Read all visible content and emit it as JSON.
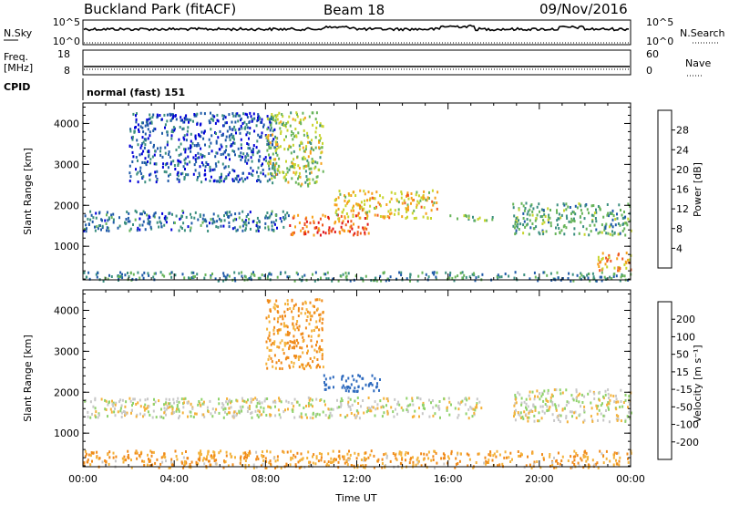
{
  "header": {
    "station": "Buckland Park (fitACF)",
    "beam": "Beam 18",
    "date": "09/Nov/2016"
  },
  "top_panels": {
    "nsky_label": "N.Sky",
    "nsearch_label": "N.Search",
    "nsky_ticks": [
      "10^5",
      "10^0"
    ],
    "freq_label_1": "Freq.",
    "freq_label_2": "[MHz]",
    "freq_ticks": [
      "18",
      "8"
    ],
    "nave_label": "Nave",
    "nave_ticks": [
      "60",
      "0"
    ],
    "cpid_label": "CPID",
    "cpid_text": "normal (fast) 151"
  },
  "chart_data": [
    {
      "type": "heatmap",
      "quantity": "Power",
      "ylabel": "Slant Range [km]",
      "ylim": [
        180,
        4500
      ],
      "yticks": [
        1000,
        2000,
        3000,
        4000
      ],
      "xlim": [
        0,
        24
      ],
      "colorbar_label": "Power [dB]",
      "colorbar_ticks": [
        "4",
        "8",
        "12",
        "16",
        "20",
        "24",
        "28"
      ],
      "colorbar_colors": [
        "#0000d8",
        "#1f5aa8",
        "#3b8f7f",
        "#67b45a",
        "#c8d42c",
        "#f7a11a",
        "#f05a1e",
        "#e0161a"
      ],
      "echo_regions": [
        {
          "t0": 0.0,
          "t1": 9.0,
          "r0": 1400,
          "r1": 1900,
          "level": 8
        },
        {
          "t0": 2.0,
          "t1": 8.5,
          "r0": 2600,
          "r1": 4300,
          "level": 6
        },
        {
          "t0": 8.0,
          "t1": 10.5,
          "r0": 2500,
          "r1": 4300,
          "level": 16
        },
        {
          "t0": 9.0,
          "t1": 12.5,
          "r0": 1300,
          "r1": 1800,
          "level": 26
        },
        {
          "t0": 11.0,
          "t1": 15.5,
          "r0": 1700,
          "r1": 2400,
          "level": 20
        },
        {
          "t0": 16.0,
          "t1": 18.0,
          "r0": 1650,
          "r1": 1800,
          "level": 14
        },
        {
          "t0": 18.8,
          "t1": 24.0,
          "r0": 1300,
          "r1": 2100,
          "level": 12
        },
        {
          "t0": 22.5,
          "t1": 24.0,
          "r0": 400,
          "r1": 900,
          "level": 22
        },
        {
          "t0": 0.0,
          "t1": 24.0,
          "r0": 180,
          "r1": 400,
          "level": 10
        }
      ]
    },
    {
      "type": "heatmap",
      "quantity": "Velocity",
      "ylabel": "Slant Range [km]",
      "xlabel": "Time UT",
      "ylim": [
        180,
        4500
      ],
      "yticks": [
        1000,
        2000,
        3000,
        4000
      ],
      "xlim": [
        0,
        24
      ],
      "xticks": [
        "00:00",
        "04:00",
        "08:00",
        "12:00",
        "16:00",
        "20:00",
        "00:00"
      ],
      "colorbar_label": "Velocity [m s⁻¹]",
      "colorbar_ticks": [
        "200",
        "100",
        "50",
        "15",
        "-15",
        "-50",
        "-100",
        "-200"
      ],
      "colorbar_colors": [
        "#1a2a9a",
        "#2f6bbf",
        "#3ea44a",
        "#8fd26b",
        "#c8c8c8",
        "#f4b23a",
        "#f08a1a",
        "#e8501a",
        "#e0161a"
      ],
      "echo_regions": [
        {
          "t0": 0.0,
          "t1": 17.5,
          "r0": 1400,
          "r1": 1900,
          "level": 0
        },
        {
          "t0": 8.0,
          "t1": 10.5,
          "r0": 2600,
          "r1": 4300,
          "level": -60
        },
        {
          "t0": 10.5,
          "t1": 13.0,
          "r0": 2050,
          "r1": 2450,
          "level": 150
        },
        {
          "t0": 18.8,
          "t1": 24.0,
          "r0": 1300,
          "r1": 2100,
          "level": 0
        },
        {
          "t0": 0.0,
          "t1": 24.0,
          "r0": 180,
          "r1": 600,
          "level": -50
        }
      ]
    }
  ]
}
